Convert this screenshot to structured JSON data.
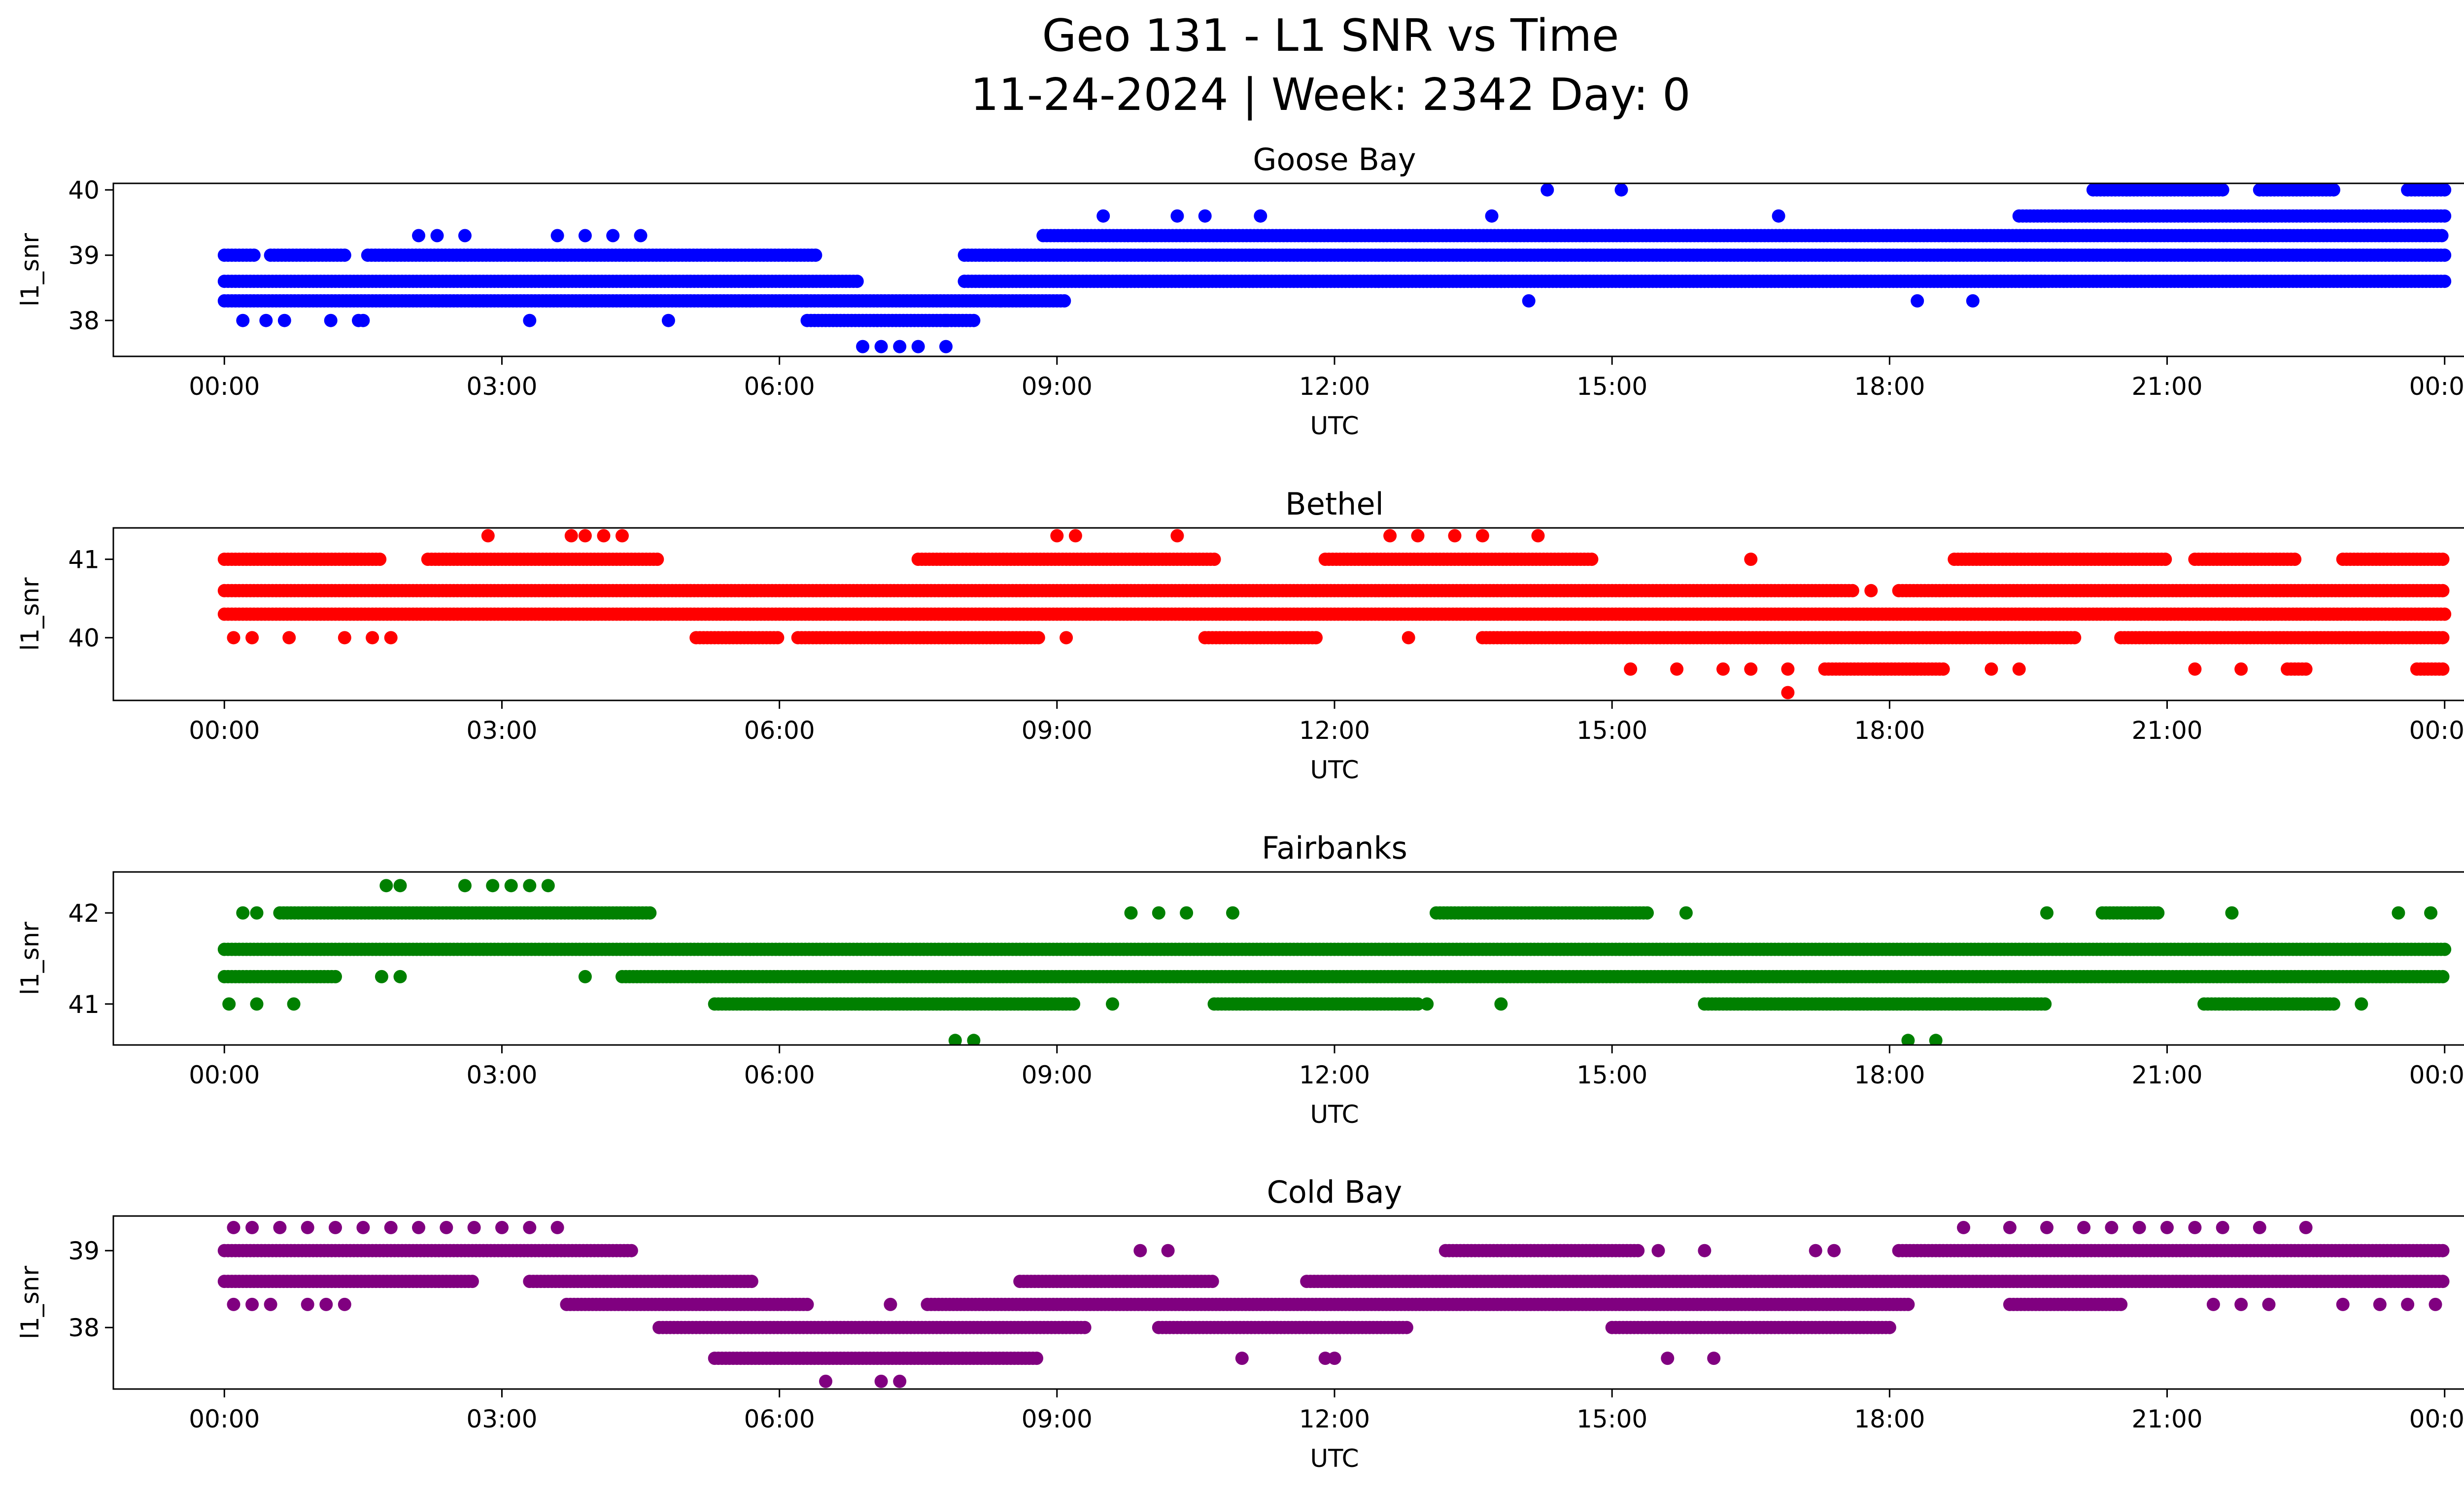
{
  "chart_data": {
    "type": "scatter",
    "title_line1": "Geo 131 - L1 SNR vs Time",
    "title_line2": "11-24-2024 | Week: 2342 Day: 0",
    "x_tick_labels": [
      "00:00",
      "03:00",
      "06:00",
      "09:00",
      "12:00",
      "15:00",
      "18:00",
      "21:00",
      "00:00"
    ],
    "x_ticks_hours": [
      0,
      3,
      6,
      9,
      12,
      15,
      18,
      21,
      24
    ],
    "xlim_hours": [
      -1.2,
      25.2
    ],
    "panels": [
      {
        "title": "Goose Bay",
        "xlabel": "UTC",
        "ylabel": "l1_snr",
        "color": "#0000ff",
        "ylim": [
          37.45,
          40.1
        ],
        "yticks": [
          38,
          39,
          40
        ],
        "ytick_labels": [
          "38",
          "39",
          "40"
        ],
        "series": [
          {
            "snr": 38.6,
            "spans": [
              [
                0,
                6.85
              ],
              [
                8.0,
                24
              ]
            ]
          },
          {
            "snr": 38.3,
            "spans": [
              [
                0,
                6.3
              ],
              [
                6.3,
                8.4
              ],
              [
                8.4,
                9.1
              ]
            ]
          },
          {
            "snr": 38.0,
            "spans": [
              [
                6.3,
                8.1
              ]
            ]
          },
          {
            "snr": 39.0,
            "spans": [
              [
                0,
                0.35
              ],
              [
                0.5,
                1.3
              ],
              [
                1.55,
                6.4
              ],
              [
                8.0,
                24
              ]
            ]
          },
          {
            "snr": 39.3,
            "spans": [
              [
                8.85,
                24
              ]
            ]
          },
          {
            "snr": 39.6,
            "spans": [
              [
                19.4,
                24
              ]
            ]
          },
          {
            "snr": 38.6,
            "spans": [
              [
                8.0,
                19.7
              ]
            ]
          },
          {
            "snr": 40.0,
            "spans": [
              [
                20.2,
                21.6
              ],
              [
                22.0,
                22.8
              ],
              [
                23.6,
                24
              ]
            ]
          }
        ],
        "scatter_points": [
          [
            0.2,
            38.0
          ],
          [
            0.45,
            38.0
          ],
          [
            0.65,
            38.0
          ],
          [
            1.15,
            38.0
          ],
          [
            1.45,
            38.0
          ],
          [
            1.5,
            38.0
          ],
          [
            3.3,
            38.0
          ],
          [
            4.8,
            38.0
          ],
          [
            7.8,
            38.0
          ],
          [
            6.9,
            37.6
          ],
          [
            7.1,
            37.6
          ],
          [
            7.3,
            37.6
          ],
          [
            7.5,
            37.6
          ],
          [
            7.8,
            37.6
          ],
          [
            2.1,
            39.3
          ],
          [
            2.3,
            39.3
          ],
          [
            2.6,
            39.3
          ],
          [
            3.6,
            39.3
          ],
          [
            3.9,
            39.3
          ],
          [
            4.2,
            39.3
          ],
          [
            4.5,
            39.3
          ],
          [
            9.5,
            39.6
          ],
          [
            10.3,
            39.6
          ],
          [
            10.6,
            39.6
          ],
          [
            14.1,
            38.3
          ],
          [
            18.3,
            38.3
          ],
          [
            18.9,
            38.3
          ],
          [
            14.3,
            40.0
          ],
          [
            15.1,
            40.0
          ],
          [
            11.2,
            39.6
          ],
          [
            13.7,
            39.6
          ],
          [
            16.8,
            39.6
          ]
        ]
      },
      {
        "title": "Bethel",
        "xlabel": "UTC",
        "ylabel": "l1_snr",
        "color": "#ff0000",
        "ylim": [
          39.2,
          41.4
        ],
        "yticks": [
          40,
          41
        ],
        "ytick_labels": [
          "40",
          "41"
        ],
        "series": [
          {
            "snr": 40.6,
            "spans": [
              [
                0,
                17.6
              ],
              [
                18.1,
                24
              ]
            ]
          },
          {
            "snr": 40.3,
            "spans": [
              [
                0,
                24
              ]
            ]
          },
          {
            "snr": 41.0,
            "spans": [
              [
                0,
                1.7
              ],
              [
                2.2,
                4.7
              ],
              [
                7.5,
                10.7
              ],
              [
                11.9,
                14.8
              ],
              [
                18.7,
                21.0
              ],
              [
                21.3,
                22.4
              ],
              [
                22.9,
                24
              ]
            ]
          },
          {
            "snr": 40.0,
            "spans": [
              [
                5.1,
                6.0
              ],
              [
                6.2,
                8.8
              ],
              [
                10.6,
                11.8
              ],
              [
                13.6,
                20.0
              ],
              [
                20.5,
                24
              ]
            ]
          },
          {
            "snr": 39.6,
            "spans": [
              [
                17.3,
                18.6
              ],
              [
                22.3,
                22.5
              ],
              [
                23.7,
                24
              ]
            ]
          }
        ],
        "scatter_points": [
          [
            2.85,
            41.3
          ],
          [
            3.75,
            41.3
          ],
          [
            3.9,
            41.3
          ],
          [
            4.1,
            41.3
          ],
          [
            4.3,
            41.3
          ],
          [
            9.0,
            41.3
          ],
          [
            9.2,
            41.3
          ],
          [
            10.3,
            41.3
          ],
          [
            12.6,
            41.3
          ],
          [
            12.9,
            41.3
          ],
          [
            13.3,
            41.3
          ],
          [
            13.6,
            41.3
          ],
          [
            14.2,
            41.3
          ],
          [
            0.1,
            40.0
          ],
          [
            0.3,
            40.0
          ],
          [
            0.7,
            40.0
          ],
          [
            1.3,
            40.0
          ],
          [
            1.6,
            40.0
          ],
          [
            1.8,
            40.0
          ],
          [
            15.2,
            39.6
          ],
          [
            15.7,
            39.6
          ],
          [
            16.2,
            39.6
          ],
          [
            16.5,
            39.6
          ],
          [
            16.9,
            39.6
          ],
          [
            19.1,
            39.6
          ],
          [
            19.4,
            39.6
          ],
          [
            21.3,
            39.6
          ],
          [
            21.8,
            39.6
          ],
          [
            16.9,
            39.3
          ],
          [
            16.5,
            41.0
          ],
          [
            17.8,
            40.6
          ],
          [
            9.1,
            40.0
          ],
          [
            12.8,
            40.0
          ]
        ]
      },
      {
        "title": "Fairbanks",
        "xlabel": "UTC",
        "ylabel": "l1_snr",
        "color": "#008000",
        "ylim": [
          40.55,
          42.45
        ],
        "yticks": [
          41,
          42
        ],
        "ytick_labels": [
          "41",
          "42"
        ],
        "series": [
          {
            "snr": 41.6,
            "spans": [
              [
                0,
                24
              ]
            ]
          },
          {
            "snr": 41.3,
            "spans": [
              [
                0,
                1.2
              ],
              [
                4.3,
                24
              ]
            ]
          },
          {
            "snr": 42.0,
            "spans": [
              [
                0.6,
                4.6
              ],
              [
                13.1,
                15.4
              ],
              [
                20.3,
                20.9
              ]
            ]
          },
          {
            "snr": 41.0,
            "spans": [
              [
                5.3,
                9.2
              ],
              [
                10.7,
                12.9
              ],
              [
                16.0,
                19.7
              ],
              [
                21.4,
                22.8
              ]
            ]
          }
        ],
        "scatter_points": [
          [
            1.75,
            42.3
          ],
          [
            1.9,
            42.3
          ],
          [
            2.6,
            42.3
          ],
          [
            2.9,
            42.3
          ],
          [
            3.1,
            42.3
          ],
          [
            3.3,
            42.3
          ],
          [
            3.5,
            42.3
          ],
          [
            0.2,
            42.0
          ],
          [
            0.35,
            42.0
          ],
          [
            9.8,
            42.0
          ],
          [
            10.1,
            42.0
          ],
          [
            10.4,
            42.0
          ],
          [
            10.9,
            42.0
          ],
          [
            15.8,
            42.0
          ],
          [
            19.7,
            42.0
          ],
          [
            21.7,
            42.0
          ],
          [
            23.5,
            42.0
          ],
          [
            23.85,
            42.0
          ],
          [
            0.05,
            41.0
          ],
          [
            0.35,
            41.0
          ],
          [
            0.75,
            41.0
          ],
          [
            5.9,
            41.0
          ],
          [
            9.6,
            41.0
          ],
          [
            13.0,
            41.0
          ],
          [
            13.8,
            41.0
          ],
          [
            23.1,
            41.0
          ],
          [
            1.7,
            41.3
          ],
          [
            1.9,
            41.3
          ],
          [
            3.9,
            41.3
          ],
          [
            7.9,
            40.6
          ],
          [
            8.1,
            40.6
          ],
          [
            18.2,
            40.6
          ],
          [
            18.5,
            40.6
          ]
        ]
      },
      {
        "title": "Cold Bay",
        "xlabel": "UTC",
        "ylabel": "l1_snr",
        "color": "#800080",
        "ylim": [
          37.2,
          39.45
        ],
        "yticks": [
          38,
          39
        ],
        "ytick_labels": [
          "38",
          "39"
        ],
        "series": [
          {
            "snr": 39.0,
            "spans": [
              [
                0,
                4.4
              ],
              [
                13.2,
                15.3
              ],
              [
                18.1,
                24
              ]
            ]
          },
          {
            "snr": 38.6,
            "spans": [
              [
                0,
                2.7
              ],
              [
                3.3,
                5.7
              ],
              [
                8.6,
                10.7
              ],
              [
                11.7,
                24
              ]
            ]
          },
          {
            "snr": 38.3,
            "spans": [
              [
                3.7,
                6.3
              ],
              [
                7.6,
                18.2
              ],
              [
                19.3,
                20.5
              ]
            ]
          },
          {
            "snr": 38.0,
            "spans": [
              [
                4.7,
                9.3
              ],
              [
                10.1,
                12.8
              ],
              [
                15.0,
                18.0
              ]
            ]
          },
          {
            "snr": 37.6,
            "spans": [
              [
                5.3,
                8.8
              ]
            ]
          }
        ],
        "scatter_points": [
          [
            0.1,
            39.3
          ],
          [
            0.3,
            39.3
          ],
          [
            0.6,
            39.3
          ],
          [
            0.9,
            39.3
          ],
          [
            1.2,
            39.3
          ],
          [
            1.5,
            39.3
          ],
          [
            1.8,
            39.3
          ],
          [
            2.1,
            39.3
          ],
          [
            2.4,
            39.3
          ],
          [
            2.7,
            39.3
          ],
          [
            3.0,
            39.3
          ],
          [
            3.3,
            39.3
          ],
          [
            3.6,
            39.3
          ],
          [
            18.8,
            39.3
          ],
          [
            19.3,
            39.3
          ],
          [
            19.7,
            39.3
          ],
          [
            20.1,
            39.3
          ],
          [
            20.4,
            39.3
          ],
          [
            20.7,
            39.3
          ],
          [
            21.0,
            39.3
          ],
          [
            21.3,
            39.3
          ],
          [
            21.6,
            39.3
          ],
          [
            22.0,
            39.3
          ],
          [
            22.5,
            39.3
          ],
          [
            0.1,
            38.3
          ],
          [
            0.3,
            38.3
          ],
          [
            0.5,
            38.3
          ],
          [
            0.9,
            38.3
          ],
          [
            1.1,
            38.3
          ],
          [
            1.3,
            38.3
          ],
          [
            21.5,
            38.3
          ],
          [
            21.8,
            38.3
          ],
          [
            22.1,
            38.3
          ],
          [
            22.9,
            38.3
          ],
          [
            23.3,
            38.3
          ],
          [
            23.6,
            38.3
          ],
          [
            23.9,
            38.3
          ],
          [
            6.5,
            37.3
          ],
          [
            7.1,
            37.3
          ],
          [
            7.3,
            37.3
          ],
          [
            7.2,
            38.3
          ],
          [
            11.0,
            37.6
          ],
          [
            11.9,
            37.6
          ],
          [
            12.0,
            37.6
          ],
          [
            15.6,
            37.6
          ],
          [
            16.1,
            37.6
          ],
          [
            9.9,
            39.0
          ],
          [
            10.2,
            39.0
          ],
          [
            17.2,
            39.0
          ],
          [
            17.4,
            39.0
          ],
          [
            16.0,
            39.0
          ],
          [
            15.5,
            39.0
          ]
        ]
      }
    ]
  }
}
